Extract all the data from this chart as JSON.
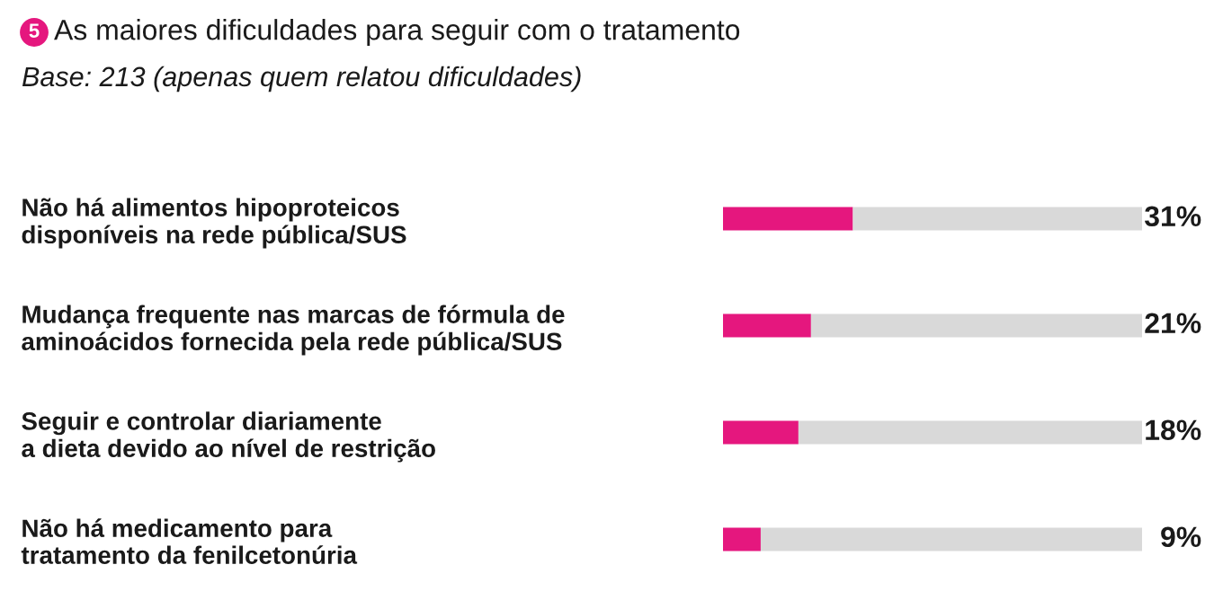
{
  "chart_data": {
    "type": "bar",
    "orientation": "horizontal",
    "stacked": true,
    "title": "As maiores dificuldades para seguir com o tratamento",
    "subtitle": "Base: 213 (apenas quem relatou dificuldades)",
    "annotations": [
      "5"
    ],
    "categories": [
      "Não há alimentos hipoproteicos\ndisponíveis na rede pública/SUS",
      "Mudança frequente nas marcas de fórmula de\naminoácidos fornecida pela rede pública/SUS",
      "Seguir e controlar diariamente\na dieta devido ao nível de restrição",
      "Não há medicamento para\ntratamento da fenilcetonúria"
    ],
    "series": [
      {
        "color": "#e5177e",
        "values": [
          31,
          21,
          18,
          9
        ],
        "value_labels": [
          "31%",
          "21%",
          "18%",
          "9%"
        ]
      },
      {
        "color": "#d9d9d9",
        "values": [
          69,
          79,
          82,
          91
        ]
      }
    ],
    "xlim": [
      0,
      100
    ],
    "tick_labels": "y",
    "grid": false,
    "legend": false
  }
}
